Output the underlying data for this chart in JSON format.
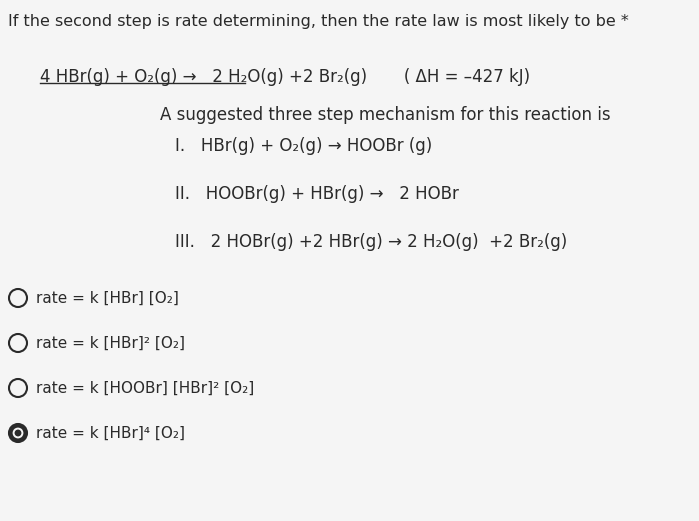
{
  "background_color": "#f5f5f5",
  "title": "If the second step is rate determining, then the rate law is most likely to be *",
  "reaction_main": "4 HBr(g) + O₂(g) →   2 H₂O(g) +2 Br₂(g)       ( ΔH = –427 kJ)",
  "intro_text": "A suggested three step mechanism for this reaction is",
  "step1": "I.   HBr(g) + O₂(g) → HOOBr (g)",
  "step2": "II.   HOOBr(g) + HBr(g) →   2 HOBr",
  "step3": "III.   2 HOBr(g) +2 HBr(g) → 2 H₂O(g)  +2 Br₂(g)",
  "options": [
    "rate = k [HBr] [O₂]",
    "rate = k [HBr]² [O₂]",
    "rate = k [HOOBr] [HBr]² [O₂]",
    "rate = k [HBr]⁴ [O₂]"
  ],
  "selected_option": 3,
  "text_color": "#2a2a2a",
  "font_family": "DejaVu Sans",
  "title_fontsize": 11.5,
  "body_fontsize": 12.0,
  "option_fontsize": 11.0
}
